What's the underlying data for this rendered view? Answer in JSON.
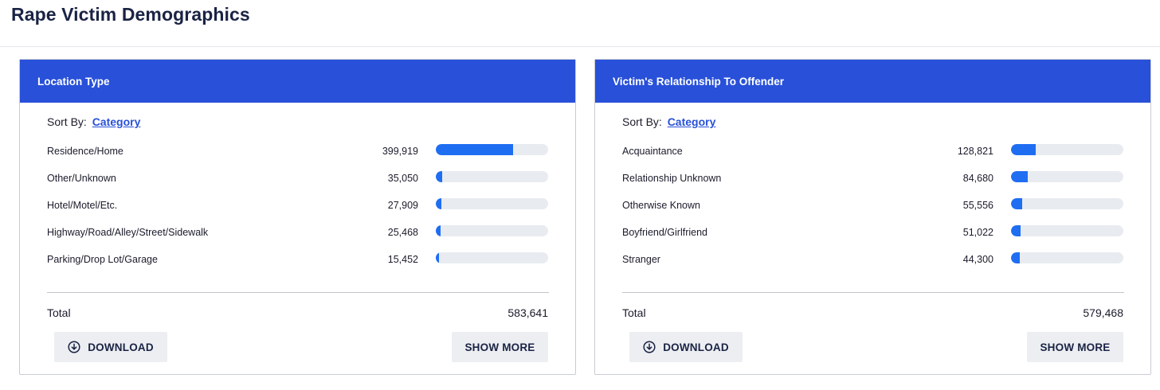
{
  "page": {
    "title": "Rape Victim Demographics"
  },
  "cards": [
    {
      "header": "Location Type",
      "sort_prefix": "Sort By:",
      "sort_value": "Category",
      "rows": [
        {
          "label": "Residence/Home",
          "value": "399,919",
          "fraction": 0.685
        },
        {
          "label": "Other/Unknown",
          "value": "35,050",
          "fraction": 0.06
        },
        {
          "label": "Hotel/Motel/Etc.",
          "value": "27,909",
          "fraction": 0.048
        },
        {
          "label": "Highway/Road/Alley/Street/Sidewalk",
          "value": "25,468",
          "fraction": 0.044
        },
        {
          "label": "Parking/Drop Lot/Garage",
          "value": "15,452",
          "fraction": 0.026
        }
      ],
      "total_label": "Total",
      "total_value": "583,641",
      "download_label": "DOWNLOAD",
      "show_more_label": "SHOW MORE"
    },
    {
      "header": "Victim's Relationship To Offender",
      "sort_prefix": "Sort By:",
      "sort_value": "Category",
      "rows": [
        {
          "label": "Acquaintance",
          "value": "128,821",
          "fraction": 0.222
        },
        {
          "label": "Relationship Unknown",
          "value": "84,680",
          "fraction": 0.146
        },
        {
          "label": "Otherwise Known",
          "value": "55,556",
          "fraction": 0.096
        },
        {
          "label": "Boyfriend/Girlfriend",
          "value": "51,022",
          "fraction": 0.088
        },
        {
          "label": "Stranger",
          "value": "44,300",
          "fraction": 0.076
        }
      ],
      "total_label": "Total",
      "total_value": "579,468",
      "download_label": "DOWNLOAD",
      "show_more_label": "SHOW MORE"
    }
  ],
  "colors": {
    "header_bg": "#2850d9",
    "bar_fill": "#1f6ef2",
    "bar_track": "#e8ebf0",
    "button_bg": "#eceef2"
  },
  "icons": {
    "download": "download-circle-icon"
  }
}
